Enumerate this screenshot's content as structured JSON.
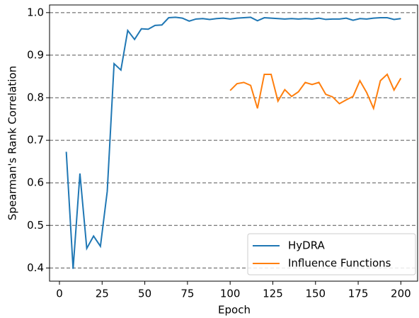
{
  "chart_data": {
    "type": "line",
    "xlabel": "Epoch",
    "ylabel": "Spearman's Rank Correlation",
    "xlim": [
      -5.8,
      209.8
    ],
    "ylim": [
      0.369,
      1.018
    ],
    "xticks": [
      0,
      25,
      50,
      75,
      100,
      125,
      150,
      175,
      200
    ],
    "yticks": [
      0.4,
      0.5,
      0.6,
      0.7,
      0.8,
      0.9,
      {
        "value": 1,
        "label": "1.0"
      }
    ],
    "grid": true,
    "legend": "lower right",
    "series": [
      {
        "name": "HyDRA",
        "color": "#1f77b4",
        "x": [
          4,
          8,
          12,
          16,
          20,
          24,
          28,
          32,
          36,
          40,
          44,
          48,
          52,
          56,
          60,
          64,
          68,
          72,
          76,
          80,
          84,
          88,
          92,
          96,
          100,
          104,
          108,
          112,
          116,
          120,
          124,
          128,
          132,
          136,
          140,
          144,
          148,
          152,
          156,
          160,
          164,
          168,
          172,
          176,
          180,
          184,
          188,
          192,
          196,
          200
        ],
        "values": [
          0.673,
          0.398,
          0.622,
          0.446,
          0.475,
          0.451,
          0.58,
          0.88,
          0.865,
          0.958,
          0.937,
          0.962,
          0.961,
          0.97,
          0.971,
          0.988,
          0.989,
          0.987,
          0.98,
          0.985,
          0.986,
          0.984,
          0.986,
          0.987,
          0.985,
          0.987,
          0.988,
          0.989,
          0.981,
          0.988,
          0.987,
          0.986,
          0.985,
          0.986,
          0.985,
          0.986,
          0.985,
          0.987,
          0.984,
          0.985,
          0.985,
          0.987,
          0.982,
          0.986,
          0.985,
          0.987,
          0.988,
          0.988,
          0.984,
          0.986
        ]
      },
      {
        "name": "Influence Functions",
        "color": "#ff7f0e",
        "x": [
          100,
          104,
          108,
          112,
          116,
          120,
          124,
          128,
          132,
          136,
          140,
          144,
          148,
          152,
          156,
          160,
          164,
          168,
          172,
          176,
          180,
          184,
          188,
          192,
          196,
          200
        ],
        "values": [
          0.817,
          0.833,
          0.836,
          0.829,
          0.775,
          0.855,
          0.855,
          0.792,
          0.819,
          0.803,
          0.814,
          0.836,
          0.831,
          0.836,
          0.808,
          0.802,
          0.786,
          0.795,
          0.803,
          0.84,
          0.812,
          0.775,
          0.84,
          0.855,
          0.818,
          0.846
        ]
      }
    ]
  }
}
